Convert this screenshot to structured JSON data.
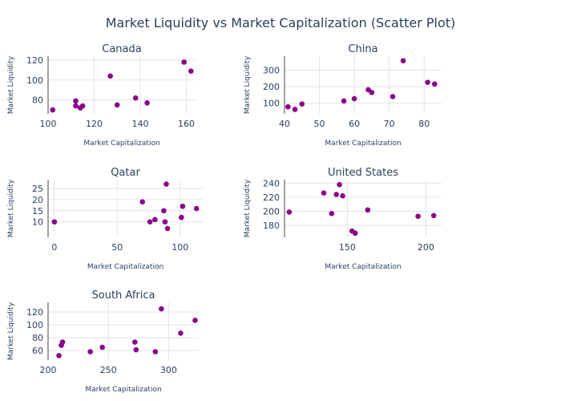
{
  "title": "Market Liquidity vs Market Capitalization (Scatter Plot)",
  "colors": {
    "marker": "#8b008b",
    "grid": "#e0e4ea",
    "text": "#2a3f5f",
    "axis_line": "#444444"
  },
  "chart_data": [
    {
      "type": "scatter",
      "title": "Canada",
      "xlabel": "Market Capitalization",
      "ylabel": "Market Liquidity",
      "xlim": [
        100,
        164
      ],
      "ylim": [
        66,
        124
      ],
      "xticks": [
        100,
        120,
        140,
        160
      ],
      "yticks": [
        80,
        100,
        120
      ],
      "points": [
        [
          102,
          70
        ],
        [
          112,
          79
        ],
        [
          112,
          74
        ],
        [
          114,
          72
        ],
        [
          115,
          74
        ],
        [
          127,
          104
        ],
        [
          130,
          75
        ],
        [
          138,
          82
        ],
        [
          143,
          77
        ],
        [
          159,
          118
        ],
        [
          162,
          109
        ]
      ]
    },
    {
      "type": "scatter",
      "title": "China",
      "xlabel": "Market Capitalization",
      "ylabel": "Market Liquidity",
      "xlim": [
        40,
        85
      ],
      "ylim": [
        35,
        385
      ],
      "xticks": [
        40,
        50,
        60,
        70,
        80
      ],
      "yticks": [
        100,
        200,
        300
      ],
      "points": [
        [
          41,
          78
        ],
        [
          43,
          62
        ],
        [
          45,
          95
        ],
        [
          57,
          113
        ],
        [
          60,
          127
        ],
        [
          64,
          181
        ],
        [
          65,
          165
        ],
        [
          71,
          140
        ],
        [
          74,
          357
        ],
        [
          81,
          226
        ],
        [
          83,
          216
        ]
      ]
    },
    {
      "type": "scatter",
      "title": "Qatar",
      "xlabel": "Market Capitalization",
      "ylabel": "Market Liquidity",
      "xlim": [
        -5,
        118
      ],
      "ylim": [
        3,
        29
      ],
      "xticks": [
        0,
        50,
        100
      ],
      "yticks": [
        10,
        15,
        20,
        25
      ],
      "points": [
        [
          0,
          10
        ],
        [
          70,
          19
        ],
        [
          76,
          10
        ],
        [
          80,
          11
        ],
        [
          87,
          15
        ],
        [
          88,
          10
        ],
        [
          89,
          27
        ],
        [
          90,
          7
        ],
        [
          101,
          12
        ],
        [
          102,
          17
        ],
        [
          113,
          16
        ]
      ]
    },
    {
      "type": "scatter",
      "title": "United States",
      "xlabel": "Market Capitalization",
      "ylabel": "Market Liquidity",
      "xlim": [
        110,
        210
      ],
      "ylim": [
        163,
        245
      ],
      "xticks": [
        150,
        200
      ],
      "yticks": [
        180,
        200,
        220,
        240
      ],
      "points": [
        [
          113,
          199
        ],
        [
          135,
          226
        ],
        [
          140,
          197
        ],
        [
          143,
          224
        ],
        [
          145,
          238
        ],
        [
          147,
          222
        ],
        [
          153,
          172
        ],
        [
          155,
          169
        ],
        [
          163,
          202
        ],
        [
          195,
          193
        ],
        [
          205,
          194
        ]
      ]
    },
    {
      "type": "scatter",
      "title": "South Africa",
      "xlabel": "Market Capitalization",
      "ylabel": "Market Liquidity",
      "xlim": [
        200,
        325
      ],
      "ylim": [
        45,
        135
      ],
      "xticks": [
        200,
        250,
        300
      ],
      "yticks": [
        60,
        80,
        100,
        120
      ],
      "points": [
        [
          209,
          52
        ],
        [
          211,
          68
        ],
        [
          212,
          73
        ],
        [
          235,
          58
        ],
        [
          245,
          65
        ],
        [
          272,
          73
        ],
        [
          273,
          61
        ],
        [
          289,
          58
        ],
        [
          294,
          125
        ],
        [
          310,
          87
        ],
        [
          322,
          107
        ]
      ]
    }
  ]
}
